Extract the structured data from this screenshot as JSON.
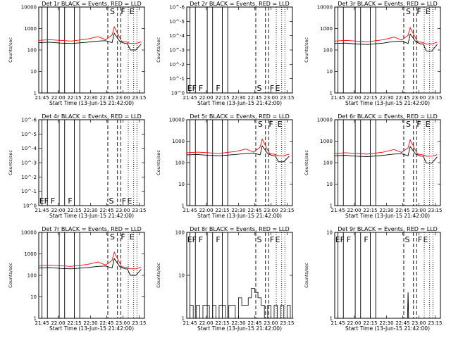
{
  "chart_data": [
    {
      "type": "line",
      "title": "Det 1r BLACK = Events, RED = LLD",
      "ylabel": "Counts/sec",
      "xlabel": "Start Time (13-Jun-15 21:42:00)",
      "x_ticks": [
        "21:45",
        "22:00",
        "22:15",
        "22:30",
        "22:45",
        "23:00",
        "23:15"
      ],
      "y_ticks": [
        "1",
        "10",
        "100",
        "1000",
        "10000"
      ],
      "ylim": [
        1,
        10000
      ],
      "y_scale": "log",
      "marker_labels": [
        "S",
        "F",
        "E"
      ],
      "series": [
        {
          "name": "BLACK = Events",
          "color": "#000000",
          "x": [
            0,
            10,
            20,
            30,
            45,
            55,
            62,
            68,
            70,
            75,
            77,
            80,
            82,
            85,
            90,
            95
          ],
          "y": [
            220,
            230,
            210,
            200,
            230,
            260,
            270,
            220,
            600,
            260,
            230,
            200,
            200,
            100,
            100,
            190
          ]
        },
        {
          "name": "RED = LLD",
          "color": "#ff0000",
          "x": [
            0,
            10,
            20,
            30,
            45,
            55,
            62,
            68,
            70,
            75,
            77,
            80,
            82,
            85,
            90,
            95
          ],
          "y": [
            280,
            300,
            280,
            260,
            320,
            420,
            300,
            500,
            1200,
            380,
            250,
            240,
            230,
            200,
            200,
            240
          ]
        }
      ]
    },
    {
      "type": "line",
      "title": "Det 2r BLACK = Events, RED = LLD",
      "ylabel": "Counts/sec",
      "xlabel": "Start Time (13-Jun-15 21:42:00)",
      "x_ticks": [
        "21:45",
        "22:00",
        "22:15",
        "22:30",
        "22:45",
        "23:00",
        "23:15"
      ],
      "y_ticks": [
        "10^0",
        "10^-1",
        "10^-2",
        "10^-3",
        "10^-4",
        "10^-5",
        "10^-6"
      ],
      "ylim": [
        1,
        1e-06
      ],
      "y_scale": "log",
      "marker_labels": [
        "E",
        "F",
        "F",
        "F",
        "S",
        "F",
        "E"
      ],
      "series": []
    },
    {
      "type": "line",
      "title": "Det 3r BLACK = Events, RED = LLD",
      "ylabel": "Counts/sec",
      "xlabel": "Start Time (13-Jun-15 21:42:00)",
      "x_ticks": [
        "21:45",
        "22:00",
        "22:15",
        "22:30",
        "22:45",
        "23:00",
        "23:15"
      ],
      "y_ticks": [
        "1",
        "10",
        "100",
        "1000",
        "10000"
      ],
      "ylim": [
        1,
        10000
      ],
      "y_scale": "log",
      "marker_labels": [
        "S",
        "F",
        "E"
      ],
      "series": [
        {
          "name": "BLACK = Events",
          "color": "#000000",
          "x": [
            0,
            10,
            20,
            30,
            45,
            55,
            62,
            68,
            70,
            75,
            77,
            80,
            82,
            85,
            90,
            95
          ],
          "y": [
            200,
            210,
            190,
            180,
            210,
            250,
            260,
            200,
            550,
            250,
            220,
            190,
            190,
            90,
            90,
            180
          ]
        },
        {
          "name": "RED = LLD",
          "color": "#ff0000",
          "x": [
            0,
            10,
            20,
            30,
            45,
            55,
            62,
            68,
            70,
            75,
            77,
            80,
            82,
            85,
            90,
            95
          ],
          "y": [
            260,
            280,
            260,
            240,
            300,
            400,
            290,
            480,
            1100,
            360,
            240,
            230,
            220,
            190,
            190,
            230
          ]
        }
      ]
    },
    {
      "type": "line",
      "title": "Det 4r BLACK = Events, RED = LLD",
      "ylabel": "Counts/sec",
      "xlabel": "Start Time (13-Jun-15 21:42:00)",
      "x_ticks": [
        "21:45",
        "22:00",
        "22:15",
        "22:30",
        "22:45",
        "23:00",
        "23:15"
      ],
      "y_ticks": [
        "10^0",
        "10^-1",
        "10^-2",
        "10^-3",
        "10^-4",
        "10^-5",
        "10^-6"
      ],
      "ylim": [
        1,
        1e-06
      ],
      "y_scale": "log",
      "marker_labels": [
        "E",
        "F",
        "F",
        "F",
        "S",
        "F",
        "E"
      ],
      "series": []
    },
    {
      "type": "line",
      "title": "Det 5r BLACK = Events, RED = LLD",
      "ylabel": "Counts/sec",
      "xlabel": "Start Time (13-Jun-15 21:42:00)",
      "x_ticks": [
        "21:45",
        "22:00",
        "22:15",
        "22:30",
        "22:45",
        "23:00",
        "23:15"
      ],
      "y_ticks": [
        "1",
        "10",
        "100",
        "1000",
        "10000"
      ],
      "ylim": [
        1,
        10000
      ],
      "y_scale": "log",
      "marker_labels": [
        "S",
        "F",
        "E"
      ],
      "series": [
        {
          "name": "BLACK = Events",
          "color": "#000000",
          "x": [
            0,
            10,
            20,
            30,
            45,
            55,
            62,
            68,
            70,
            75,
            77,
            80,
            82,
            85,
            90,
            95
          ],
          "y": [
            230,
            240,
            220,
            210,
            240,
            270,
            280,
            230,
            600,
            270,
            240,
            210,
            210,
            110,
            110,
            200
          ]
        },
        {
          "name": "RED = LLD",
          "color": "#ff0000",
          "x": [
            0,
            10,
            20,
            30,
            45,
            55,
            62,
            68,
            70,
            75,
            77,
            80,
            82,
            85,
            90,
            95
          ],
          "y": [
            290,
            310,
            290,
            270,
            330,
            430,
            310,
            520,
            1250,
            390,
            260,
            250,
            240,
            210,
            210,
            250
          ]
        }
      ]
    },
    {
      "type": "line",
      "title": "Det 6r BLACK = Events, RED = LLD",
      "ylabel": "Counts/sec",
      "xlabel": "Start Time (13-Jun-15 21:42:00)",
      "x_ticks": [
        "21:45",
        "22:00",
        "22:15",
        "22:30",
        "22:45",
        "23:00",
        "23:15"
      ],
      "y_ticks": [
        "1",
        "10",
        "100",
        "1000",
        "10000"
      ],
      "ylim": [
        1,
        10000
      ],
      "y_scale": "log",
      "marker_labels": [
        "S",
        "F",
        "E"
      ],
      "series": [
        {
          "name": "BLACK = Events",
          "color": "#000000",
          "x": [
            0,
            10,
            20,
            30,
            45,
            55,
            62,
            68,
            70,
            75,
            77,
            80,
            82,
            85,
            90,
            95
          ],
          "y": [
            210,
            220,
            200,
            190,
            220,
            250,
            260,
            210,
            560,
            250,
            230,
            200,
            200,
            95,
            95,
            185
          ]
        },
        {
          "name": "RED = LLD",
          "color": "#ff0000",
          "x": [
            0,
            10,
            20,
            30,
            45,
            55,
            62,
            68,
            70,
            75,
            77,
            80,
            82,
            85,
            90,
            95
          ],
          "y": [
            270,
            290,
            270,
            250,
            310,
            410,
            300,
            490,
            1150,
            370,
            250,
            240,
            230,
            200,
            200,
            235
          ]
        }
      ]
    },
    {
      "type": "line",
      "title": "Det 7r BLACK = Events, RED = LLD",
      "ylabel": "Counts/sec",
      "xlabel": "Start Time (13-Jun-15 21:42:00)",
      "x_ticks": [
        "21:45",
        "22:00",
        "22:15",
        "22:30",
        "22:45",
        "23:00",
        "23:15"
      ],
      "y_ticks": [
        "1",
        "10",
        "100",
        "1000",
        "10000"
      ],
      "ylim": [
        1,
        10000
      ],
      "y_scale": "log",
      "marker_labels": [
        "S",
        "F",
        "E"
      ],
      "series": [
        {
          "name": "BLACK = Events",
          "color": "#000000",
          "x": [
            0,
            10,
            20,
            30,
            45,
            55,
            62,
            68,
            70,
            75,
            77,
            80,
            82,
            85,
            90,
            95
          ],
          "y": [
            220,
            230,
            210,
            200,
            230,
            260,
            270,
            220,
            600,
            260,
            230,
            200,
            200,
            100,
            100,
            190
          ]
        },
        {
          "name": "RED = LLD",
          "color": "#ff0000",
          "x": [
            0,
            10,
            20,
            30,
            45,
            55,
            62,
            68,
            70,
            75,
            77,
            80,
            82,
            85,
            90,
            95
          ],
          "y": [
            280,
            300,
            280,
            260,
            320,
            420,
            300,
            500,
            1200,
            380,
            250,
            240,
            230,
            200,
            200,
            240
          ]
        }
      ]
    },
    {
      "type": "line",
      "title": "Det 8r BLACK = Events, RED = LLD",
      "ylabel": "Counts/sec",
      "xlabel": "Start Time (13-Jun-15 21:42:00)",
      "x_ticks": [
        "21:45",
        "22:00",
        "22:15",
        "22:30",
        "22:45",
        "23:00",
        "23:15"
      ],
      "y_ticks": [
        "1",
        "10",
        "100"
      ],
      "ylim": [
        1,
        100
      ],
      "y_scale": "log",
      "marker_labels": [
        "E",
        "F",
        "F",
        "F",
        "S",
        "F",
        "E"
      ],
      "series": [
        {
          "name": "BLACK = Events",
          "color": "#000000",
          "noise": true,
          "x": [
            0,
            3,
            6,
            9,
            12,
            15,
            18,
            21,
            24,
            27,
            30,
            33,
            36,
            39,
            42,
            45,
            48,
            51,
            54,
            57,
            60,
            63,
            66,
            69,
            72,
            75,
            78,
            81,
            84,
            87,
            90,
            93,
            96
          ],
          "y": [
            1,
            2,
            1,
            2,
            1,
            2,
            2,
            1,
            2,
            1,
            2,
            2,
            1,
            2,
            2,
            1,
            3,
            2,
            2,
            3,
            5,
            4,
            3,
            2,
            1,
            2,
            1,
            2,
            1,
            2,
            1,
            2,
            1
          ]
        }
      ]
    },
    {
      "type": "line",
      "title": "Det 9r BLACK = Events, RED = LLD",
      "ylabel": "Counts/sec",
      "xlabel": "Start Time (13-Jun-15 21:42:00)",
      "x_ticks": [
        "21:45",
        "22:00",
        "22:15",
        "22:30",
        "22:45",
        "23:00",
        "23:15"
      ],
      "y_ticks": [
        "1",
        "10"
      ],
      "ylim": [
        1,
        10
      ],
      "y_scale": "log",
      "marker_labels": [
        "E",
        "F",
        "F",
        "F",
        "S",
        "F",
        "E"
      ],
      "series": [
        {
          "name": "BLACK = Events",
          "color": "#000000",
          "x": [
            67.5,
            68,
            68.5
          ],
          "y": [
            1,
            2,
            1
          ]
        }
      ]
    }
  ]
}
